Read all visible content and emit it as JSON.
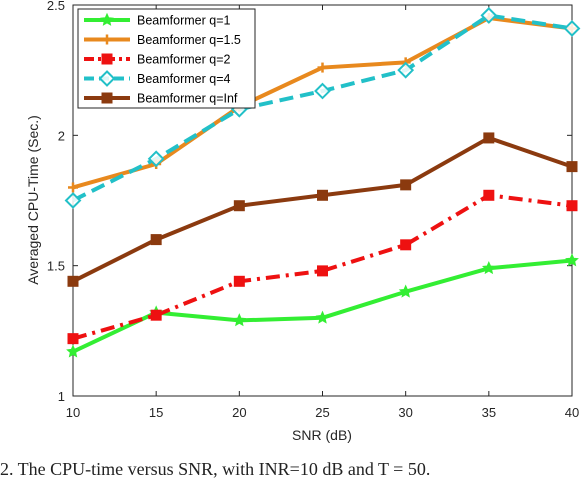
{
  "chart_data": {
    "type": "line",
    "xlabel": "SNR (dB)",
    "ylabel": "Averaged CPU-Time (Sec.)",
    "xlim": [
      10,
      40
    ],
    "ylim": [
      1,
      2.5
    ],
    "x": [
      10,
      15,
      20,
      25,
      30,
      35,
      40
    ],
    "xticks": [
      10,
      15,
      20,
      25,
      30,
      35,
      40
    ],
    "yticks": [
      1,
      1.5,
      2,
      2.5
    ],
    "grid": false,
    "legend_position": "top-left",
    "series": [
      {
        "name": "Beamformer q=1",
        "values": [
          1.17,
          1.32,
          1.29,
          1.3,
          1.4,
          1.49,
          1.52
        ],
        "color": "#33ee33",
        "line": "solid",
        "marker": "star"
      },
      {
        "name": "Beamformer q=1.5",
        "values": [
          1.8,
          1.89,
          2.11,
          2.26,
          2.28,
          2.45,
          2.41
        ],
        "color": "#e8891e",
        "line": "solid",
        "marker": "plus"
      },
      {
        "name": "Beamformer q=2",
        "values": [
          1.22,
          1.31,
          1.44,
          1.48,
          1.58,
          1.77,
          1.73
        ],
        "color": "#ee1111",
        "line": "dashdot",
        "marker": "square"
      },
      {
        "name": "Beamformer q=4",
        "values": [
          1.75,
          1.91,
          2.1,
          2.17,
          2.25,
          2.46,
          2.41
        ],
        "color": "#22c0c8",
        "line": "dashed",
        "marker": "diamond"
      },
      {
        "name": "Beamformer q=Inf",
        "values": [
          1.44,
          1.6,
          1.73,
          1.77,
          1.81,
          1.99,
          1.88
        ],
        "color": "#8b3a0f",
        "line": "solid",
        "marker": "square"
      }
    ]
  },
  "caption": "2.   The CPU-time versus SNR, with INR=10 dB and T = 50."
}
